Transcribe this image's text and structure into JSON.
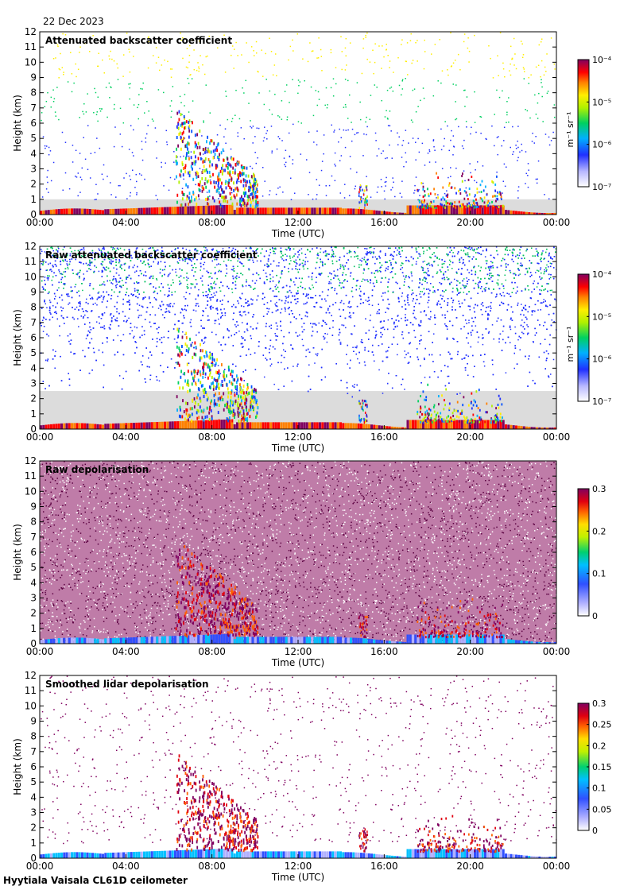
{
  "date": "22 Dec 2023",
  "footer": "Hyytiala Vaisala CL61D ceilometer",
  "colors": {
    "background_gray": "#dcdcdc",
    "frame": "#000000",
    "depol_noise": "#8a1060"
  },
  "chart_data": [
    {
      "type": "heatmap",
      "title": "Attenuated backscatter coefficient",
      "xlabel": "Time (UTC)",
      "ylabel": "Height (km)",
      "x_ticks": [
        "00:00",
        "04:00",
        "08:00",
        "12:00",
        "16:00",
        "20:00",
        "00:00"
      ],
      "xlim_hours": [
        0,
        24
      ],
      "ylim": [
        0,
        12
      ],
      "y_ticks": [
        "0",
        "1",
        "2",
        "3",
        "4",
        "5",
        "6",
        "7",
        "8",
        "9",
        "10",
        "11",
        "12"
      ],
      "colorbar": {
        "scale": "log",
        "range": [
          1e-07,
          0.0001
        ],
        "ticks": [
          "10⁻⁴",
          "10⁻⁵",
          "10⁻⁶",
          "10⁻⁷"
        ],
        "unit": "m⁻¹ sr⁻¹"
      },
      "noise": "sparse",
      "gray_floor_km": 1.0
    },
    {
      "type": "heatmap",
      "title": "Raw attenuated backscatter coefficient",
      "xlabel": "Time (UTC)",
      "ylabel": "Height (km)",
      "x_ticks": [
        "00:00",
        "04:00",
        "08:00",
        "12:00",
        "16:00",
        "20:00",
        "00:00"
      ],
      "xlim_hours": [
        0,
        24
      ],
      "ylim": [
        0,
        12
      ],
      "y_ticks": [
        "0",
        "1",
        "2",
        "3",
        "4",
        "5",
        "6",
        "7",
        "8",
        "9",
        "10",
        "11",
        "12"
      ],
      "colorbar": {
        "scale": "log",
        "range": [
          1e-07,
          0.0001
        ],
        "ticks": [
          "10⁻⁴",
          "10⁻⁵",
          "10⁻⁶",
          "10⁻⁷"
        ],
        "unit": "m⁻¹ sr⁻¹"
      },
      "noise": "dense",
      "gray_floor_km": 2.5
    },
    {
      "type": "heatmap",
      "title": "Raw depolarisation",
      "xlabel": "Time (UTC)",
      "ylabel": "Height (km)",
      "x_ticks": [
        "00:00",
        "04:00",
        "08:00",
        "12:00",
        "16:00",
        "20:00",
        "00:00"
      ],
      "xlim_hours": [
        0,
        24
      ],
      "ylim": [
        0,
        12
      ],
      "y_ticks": [
        "0",
        "1",
        "2",
        "3",
        "4",
        "5",
        "6",
        "7",
        "8",
        "9",
        "10",
        "11",
        "12"
      ],
      "colorbar": {
        "scale": "linear",
        "range": [
          0,
          0.3
        ],
        "ticks": [
          "0.3",
          "0.2",
          "0.1",
          "0"
        ],
        "unit": ""
      },
      "noise": "depol",
      "gray_floor_km": 0
    },
    {
      "type": "heatmap",
      "title": "Smoothed lidar depolarisation",
      "xlabel": "Time (UTC)",
      "ylabel": "Height (km)",
      "x_ticks": [
        "00:00",
        "04:00",
        "08:00",
        "12:00",
        "16:00",
        "20:00",
        "00:00"
      ],
      "xlim_hours": [
        0,
        24
      ],
      "ylim": [
        0,
        12
      ],
      "y_ticks": [
        "0",
        "1",
        "2",
        "3",
        "4",
        "5",
        "6",
        "7",
        "8",
        "9",
        "10",
        "11",
        "12"
      ],
      "colorbar": {
        "scale": "linear",
        "range": [
          0,
          0.3
        ],
        "ticks": [
          "0.3",
          "0.25",
          "0.2",
          "0.15",
          "0.1",
          "0.05",
          "0"
        ],
        "unit": ""
      },
      "noise": "sparse-depol",
      "gray_floor_km": 0
    }
  ]
}
